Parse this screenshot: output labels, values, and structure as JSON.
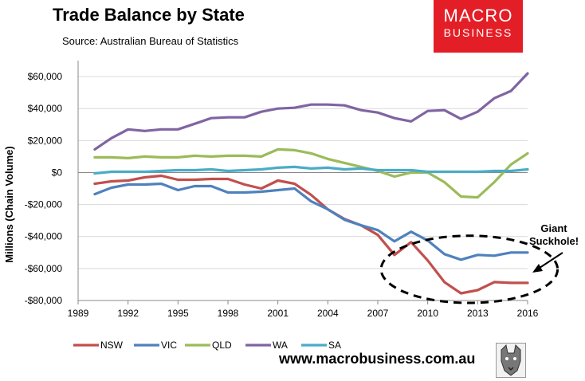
{
  "header": {
    "title": "Trade Balance by State",
    "source": "Source: Australian Bureau of Statistics"
  },
  "brand": {
    "line1": "MACRO",
    "line2": "BUSINESS",
    "bg_color": "#e41e26"
  },
  "footer": {
    "website": "www.macrobusiness.com.au"
  },
  "chart_data": {
    "type": "line",
    "title": "Trade Balance by State",
    "xlabel": "",
    "ylabel": "Millions (Chain Volume)",
    "xlim": [
      1989,
      2016
    ],
    "ylim": [
      -80000,
      70000
    ],
    "x_ticks": [
      1989,
      1992,
      1995,
      1998,
      2001,
      2004,
      2007,
      2010,
      2013,
      2016
    ],
    "y_ticks": [
      -80000,
      -60000,
      -40000,
      -20000,
      0,
      20000,
      40000,
      60000
    ],
    "y_tick_labels": [
      "-$80,000",
      "-$60,000",
      "-$40,000",
      "-$20,000",
      "$0",
      "$20,000",
      "$40,000",
      "$60,000"
    ],
    "x_tick_labels": [
      "1989",
      "1992",
      "1995",
      "1998",
      "2001",
      "2004",
      "2007",
      "2010",
      "2013",
      "2016"
    ],
    "grid": "horizontal",
    "legend_position": "bottom",
    "x": [
      1990,
      1991,
      1992,
      1993,
      1994,
      1995,
      1996,
      1997,
      1998,
      1999,
      2000,
      2001,
      2002,
      2003,
      2004,
      2005,
      2006,
      2007,
      2008,
      2009,
      2010,
      2011,
      2012,
      2013,
      2014,
      2015,
      2016
    ],
    "series": [
      {
        "name": "NSW",
        "color": "#c0504d",
        "values": [
          -7000,
          -5500,
          -5000,
          -3000,
          -2000,
          -4500,
          -4500,
          -4000,
          -4000,
          -7500,
          -10000,
          -5000,
          -7000,
          -14000,
          -23000,
          -29000,
          -33000,
          -39000,
          -51500,
          -43500,
          -55000,
          -68500,
          -75500,
          -73500,
          -68500,
          -69000,
          -69000
        ]
      },
      {
        "name": "VIC",
        "color": "#4f81bd",
        "values": [
          -13500,
          -9500,
          -7500,
          -7500,
          -7000,
          -11000,
          -8500,
          -8500,
          -12500,
          -12500,
          -12000,
          -11000,
          -10000,
          -18000,
          -23000,
          -29500,
          -33000,
          -36000,
          -43000,
          -37000,
          -42500,
          -51000,
          -54500,
          -51500,
          -52000,
          -50000,
          -50000
        ]
      },
      {
        "name": "QLD",
        "color": "#9bbb59",
        "values": [
          9500,
          9500,
          9000,
          10000,
          9500,
          9500,
          10500,
          10000,
          10500,
          10500,
          10000,
          14500,
          14000,
          12000,
          8500,
          6000,
          3500,
          1000,
          -2500,
          0,
          0,
          -6000,
          -15000,
          -15500,
          -6000,
          5000,
          12000
        ]
      },
      {
        "name": "WA",
        "color": "#8064a2",
        "values": [
          14500,
          21500,
          27000,
          26000,
          27000,
          27000,
          30500,
          34000,
          34500,
          34500,
          38000,
          40000,
          40500,
          42500,
          42500,
          42000,
          39000,
          37500,
          34000,
          32000,
          38500,
          39000,
          33500,
          38000,
          46500,
          51000,
          62000
        ]
      },
      {
        "name": "SA",
        "color": "#4bacc6",
        "values": [
          -500,
          500,
          500,
          500,
          1000,
          1500,
          1500,
          2000,
          1000,
          1500,
          2000,
          3000,
          3500,
          2500,
          3000,
          2000,
          2500,
          1500,
          1500,
          1500,
          500,
          500,
          500,
          500,
          1000,
          1000,
          2000
        ]
      }
    ],
    "annotation": {
      "line1": "Giant",
      "line2": "Suckhole!",
      "circle_center": [
        2012.5,
        -60500
      ],
      "circle_radius_x": 5.3,
      "circle_radius_y": 21000
    }
  }
}
